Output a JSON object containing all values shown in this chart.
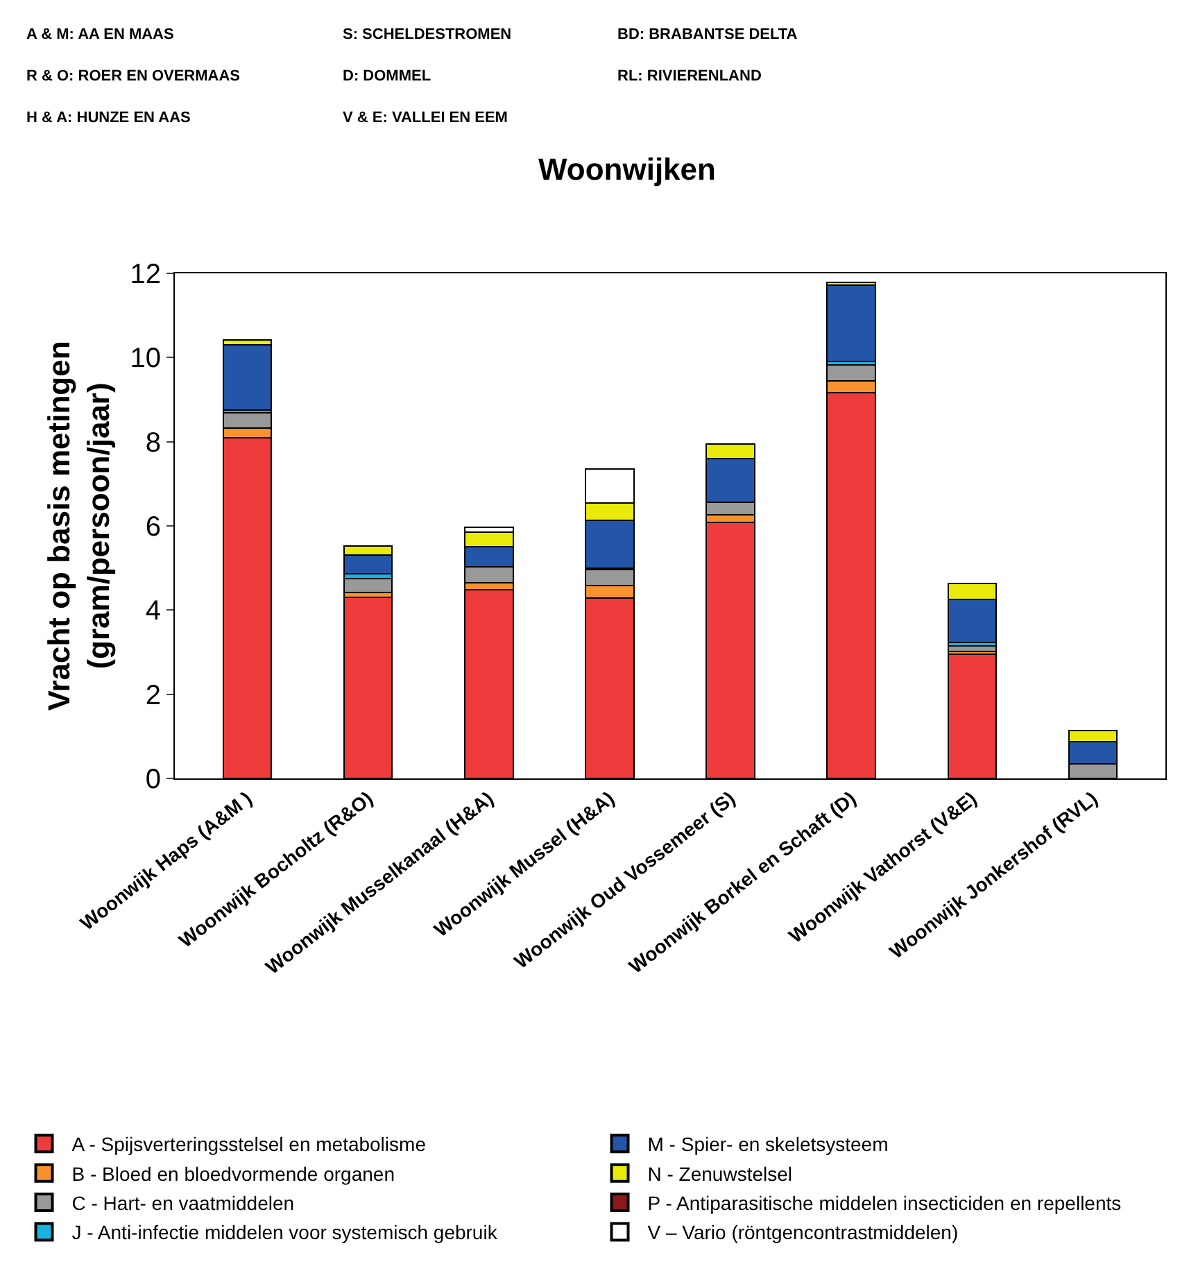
{
  "chart_data": {
    "type": "bar",
    "stacked": true,
    "title": "Woonwijken",
    "ylabel": "Vracht op basis metingen\n(gram/persoon/jaar)",
    "categories": [
      "Woonwijk Haps (A&M )",
      "Woonwijk Bocholtz (R&O)",
      "Woonwijk Musselkanaal (H&A)",
      "Woonwijk Mussel (H&A)",
      "Woonwijk Oud Vossemeer (S)",
      "Woonwijk Borkel en Schaft (D)",
      "Woonwijk Vathorst (V&E)",
      "Woonwijk Jonkershof (RVL)"
    ],
    "series": [
      {
        "name": "A - Spijsverteringsstelsel en metabolisme",
        "color": "#ee3b3b",
        "values": [
          8.09,
          4.3,
          4.48,
          4.28,
          6.08,
          9.17,
          2.95,
          null
        ]
      },
      {
        "name": "B - Bloed en bloedvormende organen",
        "color": "#f7922e",
        "values": [
          0.24,
          0.12,
          0.17,
          0.3,
          0.19,
          0.27,
          0.06,
          null
        ]
      },
      {
        "name": "C - Hart- en vaatmiddelen",
        "color": "#999999",
        "values": [
          0.35,
          0.33,
          0.38,
          0.38,
          0.29,
          0.39,
          0.14,
          0.35
        ]
      },
      {
        "name": "J - Anti-infectie middelen voor systemisch gebruik",
        "color": "#1ab3e0",
        "values": [
          0.07,
          0.12,
          null,
          0.04,
          null,
          0.08,
          0.08,
          null
        ]
      },
      {
        "name": "M - Spier- en skeletsysteem",
        "color": "#2356a8",
        "values": [
          1.56,
          0.44,
          0.48,
          1.14,
          1.04,
          1.81,
          1.03,
          0.52
        ]
      },
      {
        "name": "N - Zenuwstelsel",
        "color": "#eaea0a",
        "values": [
          0.1,
          0.21,
          0.34,
          0.4,
          0.34,
          0.07,
          0.38,
          0.27
        ]
      },
      {
        "name": "P - Antiparasitische middelen insecticiden en repellents",
        "color": "#8b1a1a",
        "values": [
          null,
          null,
          null,
          null,
          null,
          null,
          null,
          null
        ]
      },
      {
        "name": "V – Vario (röntgencontrastmiddelen)",
        "color": "#ffffff",
        "values": [
          null,
          null,
          0.11,
          0.81,
          null,
          null,
          null,
          null
        ]
      }
    ],
    "ylim": [
      0,
      12
    ],
    "yticks": [
      0,
      2,
      4,
      6,
      8,
      10,
      12
    ],
    "legend": "bottom",
    "annotations": [
      "A & M: AA EN MAAS",
      "R & O: ROER EN OVERMAAS",
      "H & A: HUNZE EN AAS",
      "S: SCHELDESTROMEN",
      "D: DOMMEL",
      "V & E: VALLEI EN EEM",
      "BD: BRABANTSE DELTA",
      "RL: RIVIERENLAND"
    ]
  }
}
